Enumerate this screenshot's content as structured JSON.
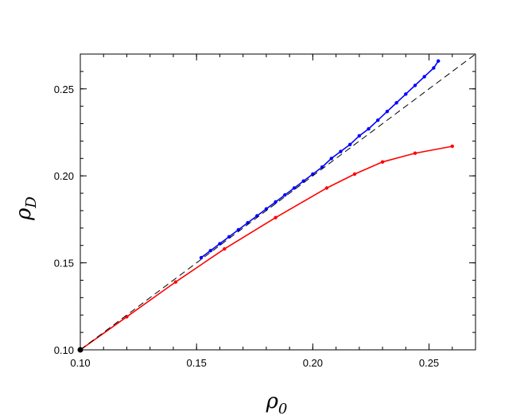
{
  "chart_data": {
    "type": "line",
    "xlabel": "ρ",
    "xlabel_sub": "0",
    "ylabel": "ρ",
    "ylabel_sub": "D",
    "xlim": [
      0.1,
      0.27
    ],
    "ylim": [
      0.1,
      0.27
    ],
    "x_ticks": [
      0.1,
      0.15,
      0.2,
      0.25
    ],
    "x_tick_labels": [
      "0.10",
      "0.15",
      "0.20",
      "0.25"
    ],
    "y_ticks": [
      0.1,
      0.15,
      0.2,
      0.25
    ],
    "y_tick_labels": [
      "0.10",
      "0.15",
      "0.20",
      "0.25"
    ],
    "x_minor_step": 0.01,
    "y_minor_step": 0.01,
    "grid": false,
    "series": [
      {
        "color": "#0000ff",
        "style": "solid-markers",
        "x": [
          0.152,
          0.156,
          0.16,
          0.164,
          0.168,
          0.172,
          0.176,
          0.18,
          0.184,
          0.188,
          0.192,
          0.196,
          0.2,
          0.204,
          0.208,
          0.212,
          0.216,
          0.22,
          0.224,
          0.228,
          0.232,
          0.236,
          0.24,
          0.244,
          0.248,
          0.252,
          0.254
        ],
        "y": [
          0.153,
          0.157,
          0.161,
          0.165,
          0.169,
          0.173,
          0.177,
          0.181,
          0.185,
          0.189,
          0.193,
          0.197,
          0.201,
          0.205,
          0.21,
          0.214,
          0.218,
          0.223,
          0.227,
          0.232,
          0.237,
          0.242,
          0.247,
          0.252,
          0.257,
          0.262,
          0.266
        ]
      },
      {
        "color": "#ff0000",
        "style": "solid-markers",
        "x": [
          0.1,
          0.12,
          0.141,
          0.162,
          0.184,
          0.206,
          0.218,
          0.23,
          0.244,
          0.26
        ],
        "y": [
          0.1,
          0.119,
          0.139,
          0.158,
          0.176,
          0.193,
          0.201,
          0.208,
          0.213,
          0.217
        ]
      },
      {
        "color": "#000000",
        "style": "dashed",
        "x": [
          0.1,
          0.27
        ],
        "y": [
          0.1,
          0.27
        ]
      }
    ],
    "origin_marker": {
      "x": 0.1,
      "y": 0.1,
      "color": "#000000"
    }
  }
}
